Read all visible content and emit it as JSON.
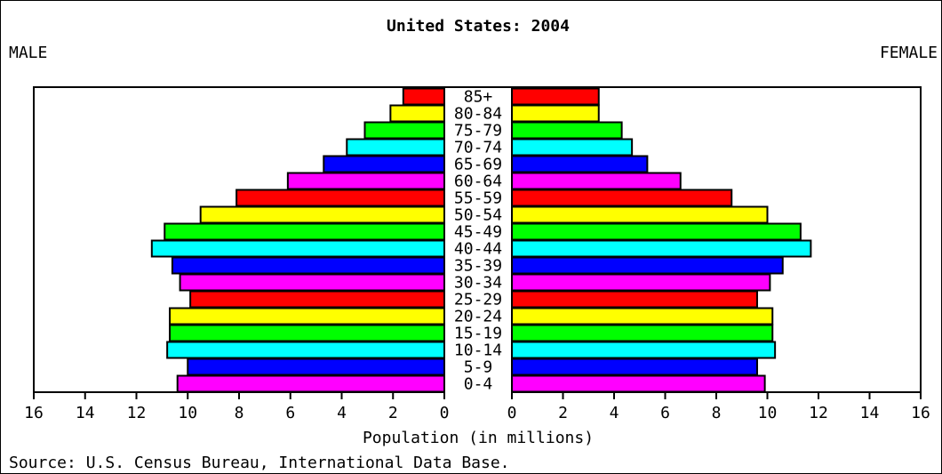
{
  "chart_data": {
    "type": "pyramid",
    "title": "United States: 2004",
    "xlabel": "Population (in millions)",
    "source": "Source: U.S. Census Bureau, International Data Base.",
    "categories": [
      "0-4",
      "5-9",
      "10-14",
      "15-19",
      "20-24",
      "25-29",
      "30-34",
      "35-39",
      "40-44",
      "45-49",
      "50-54",
      "55-59",
      "60-64",
      "65-69",
      "70-74",
      "75-79",
      "80-84",
      "85+"
    ],
    "colors": [
      "#ff00ff",
      "#0000ff",
      "#00ffff",
      "#00ff00",
      "#ffff00",
      "#ff0000",
      "#ff00ff",
      "#0000ff",
      "#00ffff",
      "#00ff00",
      "#ffff00",
      "#ff0000",
      "#ff00ff",
      "#0000ff",
      "#00ffff",
      "#00ff00",
      "#ffff00",
      "#ff0000"
    ],
    "series": [
      {
        "name": "MALE",
        "values": [
          10.4,
          10.0,
          10.8,
          10.7,
          10.7,
          9.9,
          10.3,
          10.6,
          11.4,
          10.9,
          9.5,
          8.1,
          6.1,
          4.7,
          3.8,
          3.1,
          2.1,
          1.6
        ]
      },
      {
        "name": "FEMALE",
        "values": [
          9.9,
          9.6,
          10.3,
          10.2,
          10.2,
          9.6,
          10.1,
          10.6,
          11.7,
          11.3,
          10.0,
          8.6,
          6.6,
          5.3,
          4.7,
          4.3,
          3.4,
          3.4
        ]
      }
    ],
    "xlim": [
      0,
      16
    ],
    "xticks": [
      0,
      2,
      4,
      6,
      8,
      10,
      12,
      14,
      16
    ]
  }
}
